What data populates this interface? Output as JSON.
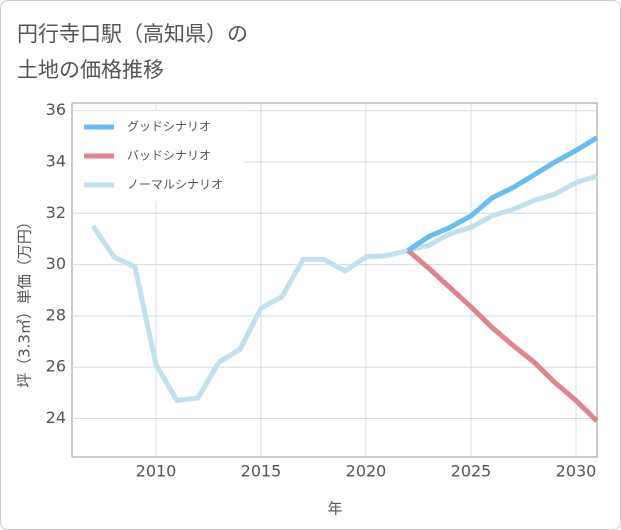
{
  "chart_data": {
    "type": "line",
    "title": [
      "円行寺口駅（高知県）の",
      "土地の価格推移"
    ],
    "x_label": "年",
    "y_label": "坪（3.3㎡）単価（万円）",
    "x": [
      2007,
      2008,
      2009,
      2010,
      2011,
      2012,
      2013,
      2014,
      2015,
      2016,
      2017,
      2018,
      2019,
      2020,
      2021,
      2022,
      2023,
      2024,
      2025,
      2026,
      2027,
      2028,
      2029,
      2030,
      2031
    ],
    "series": [
      {
        "name": "ノーマルシナリオ",
        "color": "#c2e0ee",
        "values": [
          31.5,
          30.3,
          29.9,
          26.1,
          24.7,
          24.8,
          26.2,
          26.7,
          28.3,
          28.75,
          30.2,
          30.2,
          29.75,
          30.3,
          30.35,
          30.55,
          30.75,
          31.2,
          31.45,
          31.9,
          32.15,
          32.5,
          32.75,
          33.2,
          33.45
        ]
      },
      {
        "name": "バッドシナリオ",
        "color": "#e0848f",
        "values": [
          null,
          null,
          null,
          null,
          null,
          null,
          null,
          null,
          null,
          null,
          null,
          null,
          null,
          null,
          null,
          30.55,
          29.85,
          29.1,
          28.35,
          27.55,
          26.85,
          26.2,
          25.4,
          24.7,
          23.9
        ]
      },
      {
        "name": "グッドシナリオ",
        "color": "#6bbcf0",
        "values": [
          null,
          null,
          null,
          null,
          null,
          null,
          null,
          null,
          null,
          null,
          null,
          null,
          null,
          null,
          null,
          30.55,
          31.1,
          31.45,
          31.9,
          32.6,
          33.0,
          33.5,
          34.0,
          34.45,
          34.95
        ]
      }
    ],
    "legend_order": [
      2,
      1,
      0
    ],
    "xlim": [
      2006,
      2031
    ],
    "ylim": [
      22.5,
      36.3
    ],
    "xticks": [
      2010,
      2015,
      2020,
      2025,
      2030
    ],
    "yticks": [
      24,
      26,
      28,
      30,
      32,
      34,
      36
    ],
    "grid": true
  }
}
